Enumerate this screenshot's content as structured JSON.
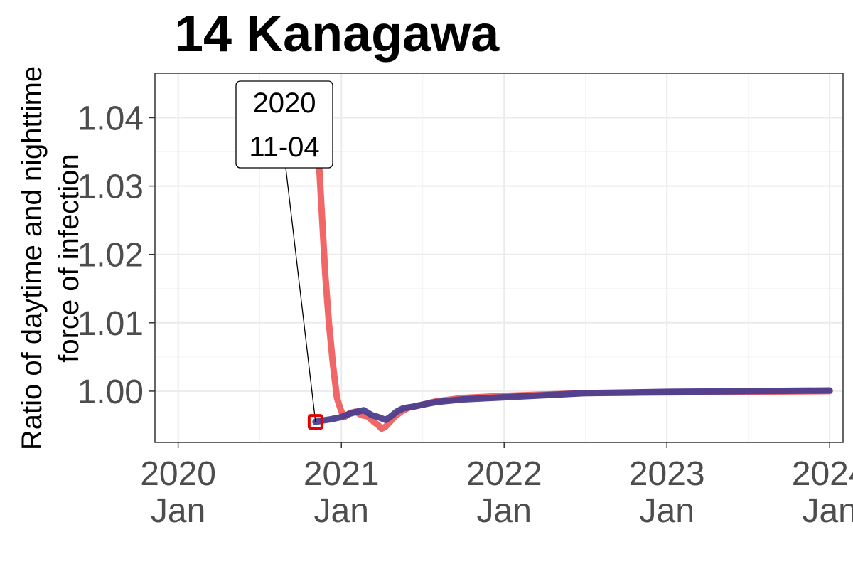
{
  "chart_data": {
    "type": "line",
    "title": "14 Kanagawa",
    "xlabel": "",
    "ylabel": [
      "Ratio of daytime and nighttime",
      "force of infection"
    ],
    "ylim": [
      0.9925,
      1.0465
    ],
    "xlim": [
      "2019-11-10",
      "2024-01-31"
    ],
    "grid": true,
    "legend": "none",
    "x_ticks": [
      {
        "date": "2020-01-01",
        "year": "2020",
        "month": "Jan"
      },
      {
        "date": "2021-01-01",
        "year": "2021",
        "month": "Jan"
      },
      {
        "date": "2022-01-01",
        "year": "2022",
        "month": "Jan"
      },
      {
        "date": "2023-01-01",
        "year": "2023",
        "month": "Jan"
      },
      {
        "date": "2024-01-01",
        "year": "2024",
        "month": "Jan"
      }
    ],
    "y_ticks": [
      "1.00",
      "1.01",
      "1.02",
      "1.03",
      "1.04"
    ],
    "y_tick_values": [
      1.0,
      1.01,
      1.02,
      1.03,
      1.04
    ],
    "series": [
      {
        "color": "#f05f5f",
        "x": [
          "2020-11-04",
          "2020-11-08",
          "2020-11-13",
          "2020-11-19",
          "2020-11-26",
          "2020-12-04",
          "2020-12-13",
          "2020-12-22",
          "2021-01-01",
          "2021-01-10",
          "2021-01-20",
          "2021-02-01",
          "2021-02-15",
          "2021-03-01",
          "2021-03-15",
          "2021-03-25",
          "2021-04-01",
          "2021-04-10",
          "2021-04-20",
          "2021-05-01",
          "2021-05-15",
          "2021-06-01",
          "2021-07-01",
          "2021-08-01",
          "2021-10-01",
          "2022-01-01",
          "2022-04-01",
          "2022-07-01",
          "2023-01-01",
          "2023-07-01",
          "2024-01-01"
        ],
        "values": [
          1.044,
          1.039,
          1.032,
          1.025,
          1.017,
          1.01,
          1.004,
          0.999,
          0.997,
          0.9963,
          0.9968,
          0.997,
          0.9965,
          0.9963,
          0.9955,
          0.995,
          0.9945,
          0.9948,
          0.9955,
          0.9963,
          0.997,
          0.9976,
          0.998,
          0.9985,
          0.999,
          0.9993,
          0.9995,
          0.9997,
          0.9998,
          0.9999,
          1.0
        ]
      },
      {
        "color": "#4b3e8f",
        "x": [
          "2020-11-04",
          "2020-11-20",
          "2020-12-10",
          "2021-01-01",
          "2021-01-20",
          "2021-02-05",
          "2021-02-20",
          "2021-03-10",
          "2021-03-25",
          "2021-04-10",
          "2021-04-20",
          "2021-05-05",
          "2021-05-20",
          "2021-06-10",
          "2021-07-01",
          "2021-08-01",
          "2021-10-01",
          "2022-01-01",
          "2022-04-01",
          "2022-07-01",
          "2023-01-01",
          "2023-07-01",
          "2024-01-01"
        ],
        "values": [
          0.9955,
          0.9957,
          0.9959,
          0.9962,
          0.9967,
          0.997,
          0.9972,
          0.9965,
          0.9962,
          0.9958,
          0.9962,
          0.997,
          0.9975,
          0.9977,
          0.998,
          0.9984,
          0.9988,
          0.9991,
          0.9994,
          0.9997,
          0.9999,
          1.0,
          1.0001
        ]
      }
    ],
    "annotation": {
      "label_line1": "2020",
      "label_line2": "11-04",
      "date": "2020-11-04",
      "value": 0.9955,
      "marker_color": "#e60000"
    }
  }
}
